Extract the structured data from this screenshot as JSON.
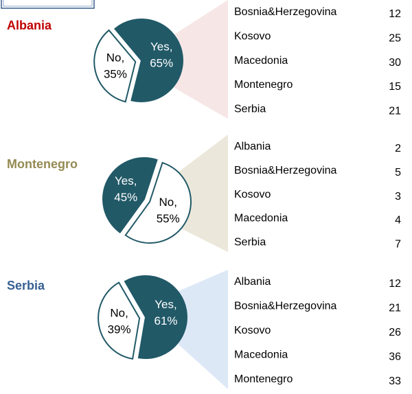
{
  "chart_data": [
    {
      "type": "pie",
      "title": "Albania",
      "title_color": "#c00000",
      "categories": [
        "Yes,",
        "No,"
      ],
      "values": [
        65,
        35
      ],
      "value_labels": [
        "65%",
        "35%"
      ],
      "colors": [
        "#215967",
        "#ffffff"
      ],
      "breakdown": {
        "categories": [
          "Bosnia&Herzegovina",
          "Kosovo",
          "Macedonia",
          "Montenegro",
          "Serbia"
        ],
        "values": [
          12,
          25,
          30,
          15,
          21
        ]
      }
    },
    {
      "type": "pie",
      "title": "Montenegro",
      "title_color": "#948a54",
      "categories": [
        "No,",
        "Yes,"
      ],
      "values": [
        55,
        45
      ],
      "value_labels": [
        "55%",
        "45%"
      ],
      "colors": [
        "#ffffff",
        "#215967"
      ],
      "breakdown": {
        "categories": [
          "Albania",
          "Bosnia&Herzegovina",
          "Kosovo",
          "Macedonia",
          "Serbia"
        ],
        "values": [
          2,
          5,
          3,
          4,
          7
        ]
      }
    },
    {
      "type": "pie",
      "title": "Serbia",
      "title_color": "#376092",
      "categories": [
        "Yes,",
        "No,"
      ],
      "values": [
        61,
        39
      ],
      "value_labels": [
        "61%",
        "39%"
      ],
      "colors": [
        "#215967",
        "#ffffff"
      ],
      "breakdown": {
        "categories": [
          "Albania",
          "Bosnia&Herzegovina",
          "Kosovo",
          "Macedonia",
          "Montenegro"
        ],
        "values": [
          12,
          21,
          26,
          36,
          33
        ]
      }
    }
  ]
}
